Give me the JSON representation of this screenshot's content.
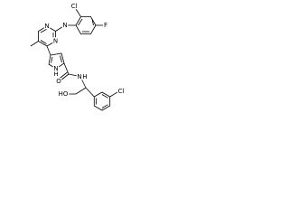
{
  "atoms": [
    {
      "label": "Cl"
    },
    {
      "label": "F"
    },
    {
      "label": "N"
    },
    {
      "label": "N"
    },
    {
      "label": "N"
    },
    {
      "label": "H"
    },
    {
      "label": "N"
    },
    {
      "label": "O"
    },
    {
      "label": "N"
    },
    {
      "label": "H"
    },
    {
      "label": "HO"
    },
    {
      "label": "Cl"
    }
  ]
}
